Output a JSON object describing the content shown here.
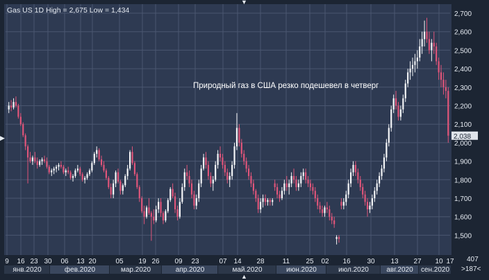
{
  "header": {
    "title": "Gas US 1D High = 2,675 Low = 1,434"
  },
  "annotation": "Природный газ в США резко подешевел в четверг",
  "corner": {
    "bar_count": "407",
    "range_label": ">187<"
  },
  "colors": {
    "background": "#2e3a52",
    "grid": "#4a5670",
    "candle_up": "#f4f5f7",
    "candle_down": "#e0557a",
    "frame": "#1c2533",
    "text": "#e6ebf2"
  },
  "chart_data": {
    "type": "candlestick",
    "title": "Gas US 1D High = 2,675 Low = 1,434",
    "annotation": "Природный газ в США резко подешевел в четверг",
    "ylim": [
      1.434,
      2.675
    ],
    "y_ticks": [
      "2,700",
      "2,600",
      "2,500",
      "2,400",
      "2,300",
      "2,200",
      "2,100",
      "2,000",
      "1,900",
      "1,800",
      "1,700",
      "1,600",
      "1,500"
    ],
    "last_price": "2,038",
    "day_labels": [
      "9",
      "16",
      "23",
      "30",
      "06",
      "13",
      "20",
      "05",
      "19",
      "26",
      "09",
      "23",
      "07",
      "14",
      "28",
      "11",
      "25",
      "02",
      "16",
      "30",
      "13",
      "27",
      "10",
      "17"
    ],
    "month_labels": [
      "янв.2020",
      "фев.2020",
      "мар.2020",
      "апр.2020",
      "май.2020",
      "июн.2020",
      "июл.2020",
      "авг.2020",
      "сен.2020"
    ],
    "candles": [
      [
        2.18,
        2.22,
        2.16,
        2.2
      ],
      [
        2.2,
        2.23,
        2.17,
        2.19
      ],
      [
        2.19,
        2.24,
        2.18,
        2.22
      ],
      [
        2.22,
        2.25,
        2.19,
        2.2
      ],
      [
        2.2,
        2.21,
        2.13,
        2.14
      ],
      [
        2.14,
        2.16,
        2.09,
        2.1
      ],
      [
        2.1,
        2.11,
        2.03,
        2.04
      ],
      [
        2.04,
        2.05,
        1.96,
        1.98
      ],
      [
        1.98,
        1.99,
        1.78,
        1.92
      ],
      [
        1.92,
        1.95,
        1.89,
        1.9
      ],
      [
        1.9,
        1.93,
        1.88,
        1.92
      ],
      [
        1.92,
        1.95,
        1.89,
        1.9
      ],
      [
        1.9,
        1.92,
        1.86,
        1.88
      ],
      [
        1.88,
        1.91,
        1.87,
        1.9
      ],
      [
        1.9,
        1.92,
        1.88,
        1.91
      ],
      [
        1.91,
        1.93,
        1.89,
        1.9
      ],
      [
        1.9,
        1.92,
        1.86,
        1.87
      ],
      [
        1.87,
        1.88,
        1.83,
        1.84
      ],
      [
        1.84,
        1.86,
        1.82,
        1.85
      ],
      [
        1.85,
        1.87,
        1.83,
        1.86
      ],
      [
        1.86,
        1.88,
        1.84,
        1.87
      ],
      [
        1.87,
        1.89,
        1.85,
        1.88
      ],
      [
        1.88,
        1.9,
        1.86,
        1.87
      ],
      [
        1.87,
        1.88,
        1.83,
        1.84
      ],
      [
        1.84,
        1.86,
        1.82,
        1.85
      ],
      [
        1.85,
        1.87,
        1.83,
        1.84
      ],
      [
        1.84,
        1.85,
        1.8,
        1.81
      ],
      [
        1.81,
        1.83,
        1.79,
        1.82
      ],
      [
        1.82,
        1.86,
        1.81,
        1.85
      ],
      [
        1.85,
        1.88,
        1.84,
        1.86
      ],
      [
        1.86,
        1.87,
        1.82,
        1.83
      ],
      [
        1.83,
        1.84,
        1.79,
        1.8
      ],
      [
        1.8,
        1.82,
        1.78,
        1.81
      ],
      [
        1.81,
        1.84,
        1.8,
        1.83
      ],
      [
        1.83,
        1.86,
        1.82,
        1.85
      ],
      [
        1.85,
        1.9,
        1.84,
        1.89
      ],
      [
        1.89,
        1.95,
        1.88,
        1.94
      ],
      [
        1.94,
        1.98,
        1.92,
        1.96
      ],
      [
        1.96,
        1.97,
        1.9,
        1.91
      ],
      [
        1.91,
        1.93,
        1.87,
        1.88
      ],
      [
        1.88,
        1.9,
        1.84,
        1.85
      ],
      [
        1.85,
        1.86,
        1.8,
        1.81
      ],
      [
        1.81,
        1.82,
        1.75,
        1.76
      ],
      [
        1.76,
        1.78,
        1.7,
        1.72
      ],
      [
        1.72,
        1.8,
        1.7,
        1.78
      ],
      [
        1.78,
        1.85,
        1.76,
        1.84
      ],
      [
        1.84,
        1.86,
        1.78,
        1.79
      ],
      [
        1.79,
        1.8,
        1.72,
        1.74
      ],
      [
        1.74,
        1.78,
        1.72,
        1.77
      ],
      [
        1.77,
        1.83,
        1.76,
        1.82
      ],
      [
        1.82,
        1.88,
        1.8,
        1.86
      ],
      [
        1.86,
        1.96,
        1.85,
        1.95
      ],
      [
        1.95,
        1.98,
        1.88,
        1.89
      ],
      [
        1.89,
        1.9,
        1.82,
        1.83
      ],
      [
        1.83,
        1.84,
        1.75,
        1.76
      ],
      [
        1.76,
        1.77,
        1.68,
        1.7
      ],
      [
        1.7,
        1.71,
        1.62,
        1.63
      ],
      [
        1.63,
        1.66,
        1.56,
        1.6
      ],
      [
        1.6,
        1.66,
        1.59,
        1.65
      ],
      [
        1.65,
        1.7,
        1.61,
        1.62
      ],
      [
        1.62,
        1.63,
        1.47,
        1.6
      ],
      [
        1.6,
        1.64,
        1.56,
        1.58
      ],
      [
        1.58,
        1.66,
        1.57,
        1.64
      ],
      [
        1.64,
        1.7,
        1.62,
        1.68
      ],
      [
        1.68,
        1.7,
        1.6,
        1.62
      ],
      [
        1.62,
        1.63,
        1.56,
        1.58
      ],
      [
        1.58,
        1.64,
        1.57,
        1.63
      ],
      [
        1.63,
        1.7,
        1.62,
        1.69
      ],
      [
        1.69,
        1.76,
        1.68,
        1.75
      ],
      [
        1.75,
        1.78,
        1.7,
        1.71
      ],
      [
        1.71,
        1.73,
        1.62,
        1.64
      ],
      [
        1.64,
        1.66,
        1.58,
        1.6
      ],
      [
        1.6,
        1.7,
        1.59,
        1.68
      ],
      [
        1.68,
        1.78,
        1.67,
        1.76
      ],
      [
        1.76,
        1.86,
        1.74,
        1.84
      ],
      [
        1.84,
        1.88,
        1.8,
        1.82
      ],
      [
        1.82,
        1.85,
        1.76,
        1.78
      ],
      [
        1.78,
        1.8,
        1.7,
        1.72
      ],
      [
        1.72,
        1.74,
        1.64,
        1.66
      ],
      [
        1.66,
        1.72,
        1.64,
        1.7
      ],
      [
        1.7,
        1.8,
        1.68,
        1.78
      ],
      [
        1.78,
        1.88,
        1.76,
        1.86
      ],
      [
        1.86,
        1.94,
        1.85,
        1.92
      ],
      [
        1.92,
        1.95,
        1.86,
        1.88
      ],
      [
        1.88,
        1.9,
        1.8,
        1.82
      ],
      [
        1.82,
        1.84,
        1.76,
        1.78
      ],
      [
        1.78,
        1.82,
        1.74,
        1.8
      ],
      [
        1.8,
        1.9,
        1.79,
        1.88
      ],
      [
        1.88,
        1.96,
        1.86,
        1.94
      ],
      [
        1.94,
        1.98,
        1.9,
        1.92
      ],
      [
        1.92,
        1.94,
        1.86,
        1.88
      ],
      [
        1.88,
        1.9,
        1.82,
        1.84
      ],
      [
        1.84,
        1.86,
        1.78,
        1.8
      ],
      [
        1.8,
        1.84,
        1.76,
        1.82
      ],
      [
        1.82,
        1.9,
        1.8,
        1.88
      ],
      [
        1.88,
        2.0,
        1.86,
        1.98
      ],
      [
        1.98,
        2.16,
        1.96,
        2.08
      ],
      [
        2.08,
        2.1,
        1.98,
        2.0
      ],
      [
        2.0,
        2.02,
        1.92,
        1.94
      ],
      [
        1.94,
        1.96,
        1.88,
        1.9
      ],
      [
        1.9,
        1.92,
        1.84,
        1.86
      ],
      [
        1.86,
        1.88,
        1.8,
        1.82
      ],
      [
        1.82,
        1.84,
        1.76,
        1.78
      ],
      [
        1.78,
        1.8,
        1.72,
        1.74
      ],
      [
        1.74,
        1.75,
        1.68,
        1.7
      ],
      [
        1.7,
        1.72,
        1.62,
        1.64
      ],
      [
        1.64,
        1.7,
        1.62,
        1.68
      ],
      [
        1.68,
        1.72,
        1.65,
        1.7
      ],
      [
        1.7,
        1.72,
        1.66,
        1.68
      ],
      [
        1.68,
        1.7,
        1.66,
        1.69
      ],
      [
        1.69,
        1.7,
        1.66,
        1.68
      ],
      [
        1.68,
        1.7,
        1.66,
        1.69
      ],
      [
        1.78,
        1.8,
        1.74,
        1.76
      ],
      [
        1.76,
        1.78,
        1.7,
        1.72
      ],
      [
        1.72,
        1.74,
        1.68,
        1.7
      ],
      [
        1.7,
        1.76,
        1.69,
        1.74
      ],
      [
        1.74,
        1.8,
        1.72,
        1.78
      ],
      [
        1.78,
        1.82,
        1.74,
        1.76
      ],
      [
        1.76,
        1.8,
        1.72,
        1.78
      ],
      [
        1.78,
        1.84,
        1.76,
        1.82
      ],
      [
        1.82,
        1.86,
        1.78,
        1.8
      ],
      [
        1.8,
        1.82,
        1.74,
        1.76
      ],
      [
        1.76,
        1.8,
        1.74,
        1.78
      ],
      [
        1.78,
        1.84,
        1.76,
        1.82
      ],
      [
        1.82,
        1.86,
        1.8,
        1.84
      ],
      [
        1.84,
        1.86,
        1.78,
        1.8
      ],
      [
        1.8,
        1.82,
        1.76,
        1.78
      ],
      [
        1.78,
        1.8,
        1.74,
        1.76
      ],
      [
        1.76,
        1.78,
        1.72,
        1.74
      ],
      [
        1.74,
        1.76,
        1.68,
        1.7
      ],
      [
        1.7,
        1.72,
        1.64,
        1.66
      ],
      [
        1.66,
        1.68,
        1.62,
        1.64
      ],
      [
        1.64,
        1.66,
        1.6,
        1.62
      ],
      [
        1.62,
        1.66,
        1.6,
        1.65
      ],
      [
        1.65,
        1.68,
        1.62,
        1.64
      ],
      [
        1.64,
        1.66,
        1.58,
        1.6
      ],
      [
        1.6,
        1.62,
        1.56,
        1.58
      ],
      [
        1.58,
        1.6,
        1.54,
        1.56
      ],
      [
        1.48,
        1.5,
        1.45,
        1.49
      ],
      [
        1.49,
        1.5,
        1.46,
        1.48
      ],
      [
        1.68,
        1.7,
        1.64,
        1.66
      ],
      [
        1.66,
        1.7,
        1.64,
        1.68
      ],
      [
        1.68,
        1.74,
        1.66,
        1.72
      ],
      [
        1.72,
        1.8,
        1.7,
        1.78
      ],
      [
        1.78,
        1.86,
        1.76,
        1.84
      ],
      [
        1.84,
        1.9,
        1.82,
        1.88
      ],
      [
        1.88,
        1.9,
        1.82,
        1.84
      ],
      [
        1.84,
        1.86,
        1.78,
        1.8
      ],
      [
        1.8,
        1.82,
        1.74,
        1.76
      ],
      [
        1.76,
        1.78,
        1.7,
        1.72
      ],
      [
        1.72,
        1.74,
        1.66,
        1.68
      ],
      [
        1.68,
        1.7,
        1.6,
        1.64
      ],
      [
        1.64,
        1.68,
        1.62,
        1.66
      ],
      [
        1.66,
        1.72,
        1.64,
        1.7
      ],
      [
        1.7,
        1.76,
        1.68,
        1.74
      ],
      [
        1.74,
        1.8,
        1.72,
        1.78
      ],
      [
        1.78,
        1.84,
        1.76,
        1.82
      ],
      [
        1.82,
        1.88,
        1.8,
        1.86
      ],
      [
        1.86,
        1.94,
        1.84,
        1.92
      ],
      [
        1.92,
        2.02,
        1.9,
        2.0
      ],
      [
        2.0,
        2.1,
        1.98,
        2.08
      ],
      [
        2.08,
        2.2,
        2.06,
        2.18
      ],
      [
        2.18,
        2.26,
        2.16,
        2.24
      ],
      [
        2.24,
        2.28,
        2.18,
        2.2
      ],
      [
        2.2,
        2.22,
        2.12,
        2.14
      ],
      [
        2.14,
        2.2,
        2.12,
        2.18
      ],
      [
        2.18,
        2.26,
        2.16,
        2.24
      ],
      [
        2.24,
        2.34,
        2.22,
        2.32
      ],
      [
        2.32,
        2.4,
        2.3,
        2.38
      ],
      [
        2.38,
        2.44,
        2.34,
        2.4
      ],
      [
        2.4,
        2.46,
        2.36,
        2.42
      ],
      [
        2.42,
        2.48,
        2.38,
        2.44
      ],
      [
        2.44,
        2.5,
        2.4,
        2.46
      ],
      [
        2.46,
        2.56,
        2.44,
        2.52
      ],
      [
        2.52,
        2.6,
        2.48,
        2.56
      ],
      [
        2.56,
        2.66,
        2.52,
        2.6
      ],
      [
        2.6,
        2.675,
        2.54,
        2.56
      ],
      [
        2.56,
        2.6,
        2.48,
        2.5
      ],
      [
        2.5,
        2.56,
        2.44,
        2.54
      ],
      [
        2.54,
        2.6,
        2.48,
        2.52
      ],
      [
        2.52,
        2.54,
        2.42,
        2.44
      ],
      [
        2.44,
        2.46,
        2.34,
        2.38
      ],
      [
        2.38,
        2.42,
        2.3,
        2.34
      ],
      [
        2.34,
        2.38,
        2.26,
        2.3
      ],
      [
        2.3,
        2.34,
        2.24,
        2.28
      ],
      [
        2.28,
        2.3,
        2.0,
        2.038
      ]
    ]
  }
}
